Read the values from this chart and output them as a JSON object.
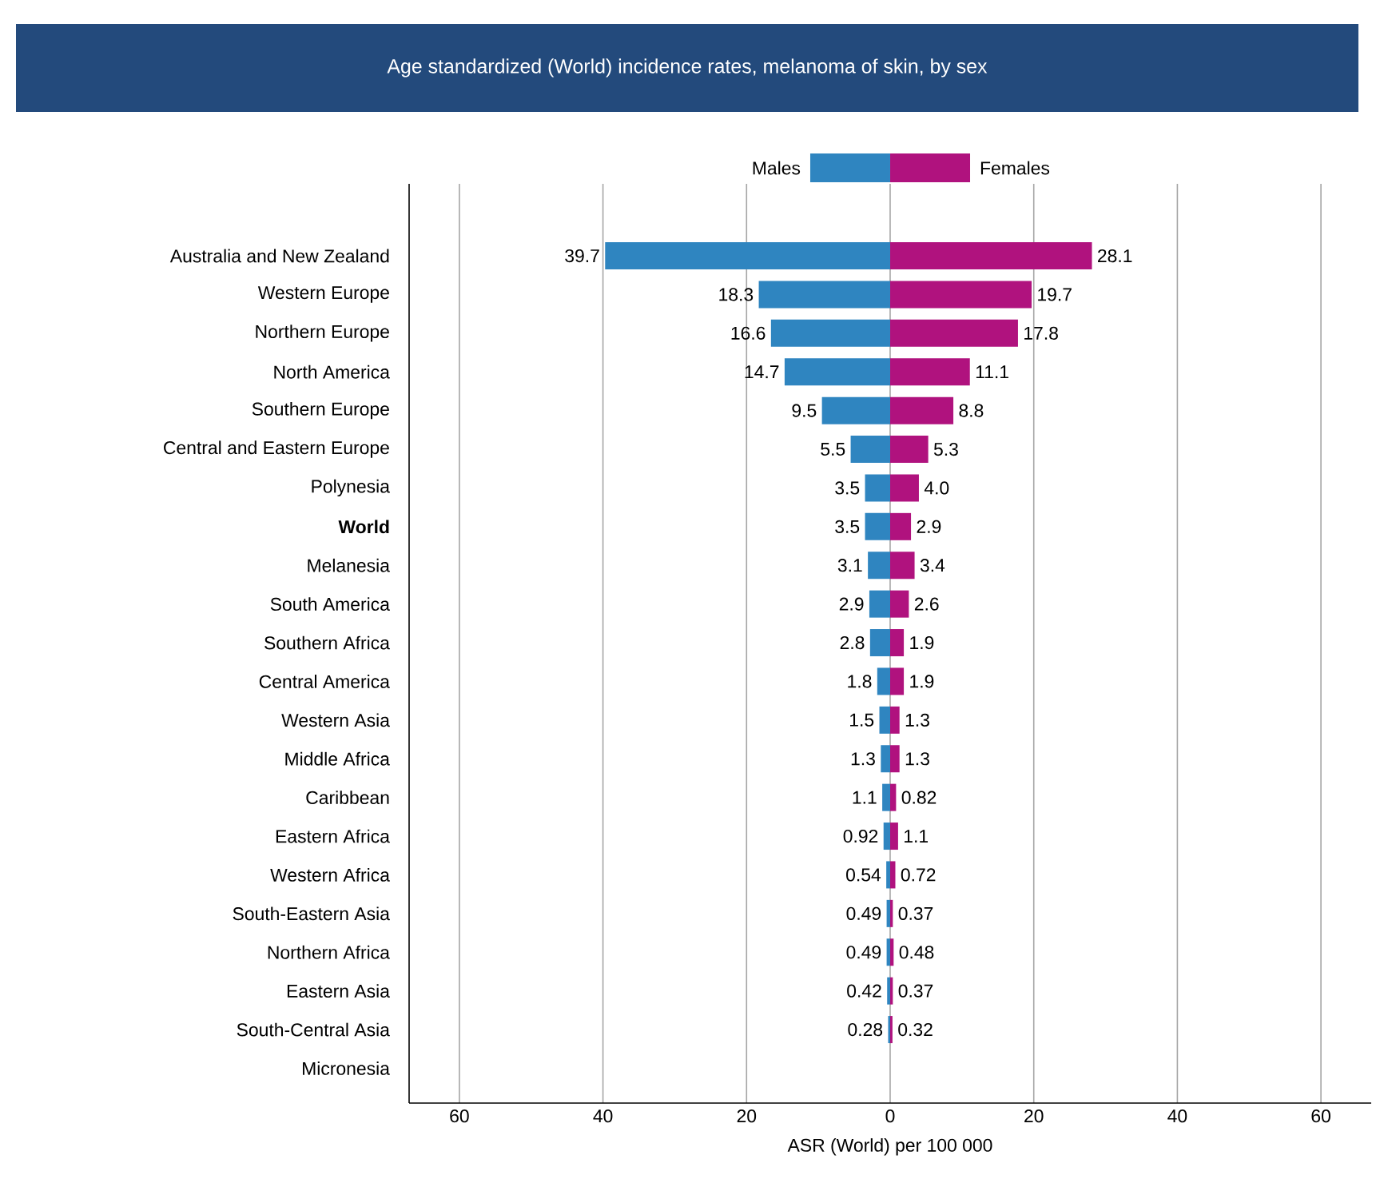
{
  "chart_data": [
    {
      "type": "bar",
      "orientation": "horizontal",
      "title": "Age standardized (World) incidence rates, melanoma of skin, by sex",
      "categories": [
        "Australia and New Zealand",
        "Western Europe",
        "Northern Europe",
        "North America",
        "Southern Europe",
        "Central and Eastern Europe",
        "Polynesia",
        "**World**",
        "Melanesia",
        "South America",
        "Southern Africa",
        "Central America",
        "Western Asia",
        "Middle Africa",
        "Caribbean",
        "Eastern Africa",
        "Western Africa",
        "South-Eastern Asia",
        "Northern Africa",
        "Eastern Asia",
        "South-Central Asia",
        "Micronesia"
      ],
      "series": [
        {
          "name": "Males",
          "color": "#2f85c0",
          "values": [
            39.7,
            18.3,
            16.6,
            14.7,
            9.5,
            5.5,
            3.5,
            3.5,
            3.1,
            2.9,
            2.8,
            1.8,
            1.5,
            1.3,
            1.1,
            0.92,
            0.54,
            0.49,
            0.49,
            0.42,
            0.28,
            null
          ],
          "value_labels": [
            "39.7",
            "18.3",
            "16.6",
            "14.7",
            "9.5",
            "5.5",
            "3.5",
            "3.5",
            "3.1",
            "2.9",
            "2.8",
            "1.8",
            "1.5",
            "1.3",
            "1.1",
            "0.92",
            "0.54",
            "0.49",
            "0.49",
            "0.42",
            "0.28",
            null
          ]
        }
      ],
      "xlim": [
        67,
        0
      ],
      "xticks": [
        60,
        40,
        20,
        0
      ],
      "grid": "x",
      "legend": "top right"
    },
    {
      "type": "bar",
      "orientation": "horizontal",
      "xlabel": "ASR (World) per 100 000",
      "categories": [
        null,
        null,
        null,
        null,
        null,
        null,
        null,
        null,
        null,
        null,
        null,
        null,
        null,
        null,
        null,
        null,
        null,
        null,
        null,
        null,
        null,
        null
      ],
      "series": [
        {
          "name": "Females",
          "color": "#b0127e",
          "values": [
            28.1,
            19.7,
            17.8,
            11.1,
            8.8,
            5.3,
            4.0,
            2.9,
            3.4,
            2.6,
            1.9,
            1.9,
            1.3,
            1.3,
            0.82,
            1.1,
            0.72,
            0.37,
            0.48,
            0.37,
            0.32,
            null
          ],
          "value_labels": [
            "28.1",
            "19.7",
            "17.8",
            "11.1",
            "8.8",
            "5.3",
            "4.0",
            "2.9",
            "3.4",
            "2.6",
            "1.9",
            "1.9",
            "1.3",
            "1.3",
            "0.82",
            "1.1",
            "0.72",
            "0.37",
            "0.48",
            "0.37",
            "0.32",
            null
          ]
        }
      ],
      "xlim": [
        0,
        67
      ],
      "xticks": [
        20,
        40,
        60
      ],
      "grid": "x",
      "legend": "top left",
      "tick_labels": "x"
    }
  ]
}
